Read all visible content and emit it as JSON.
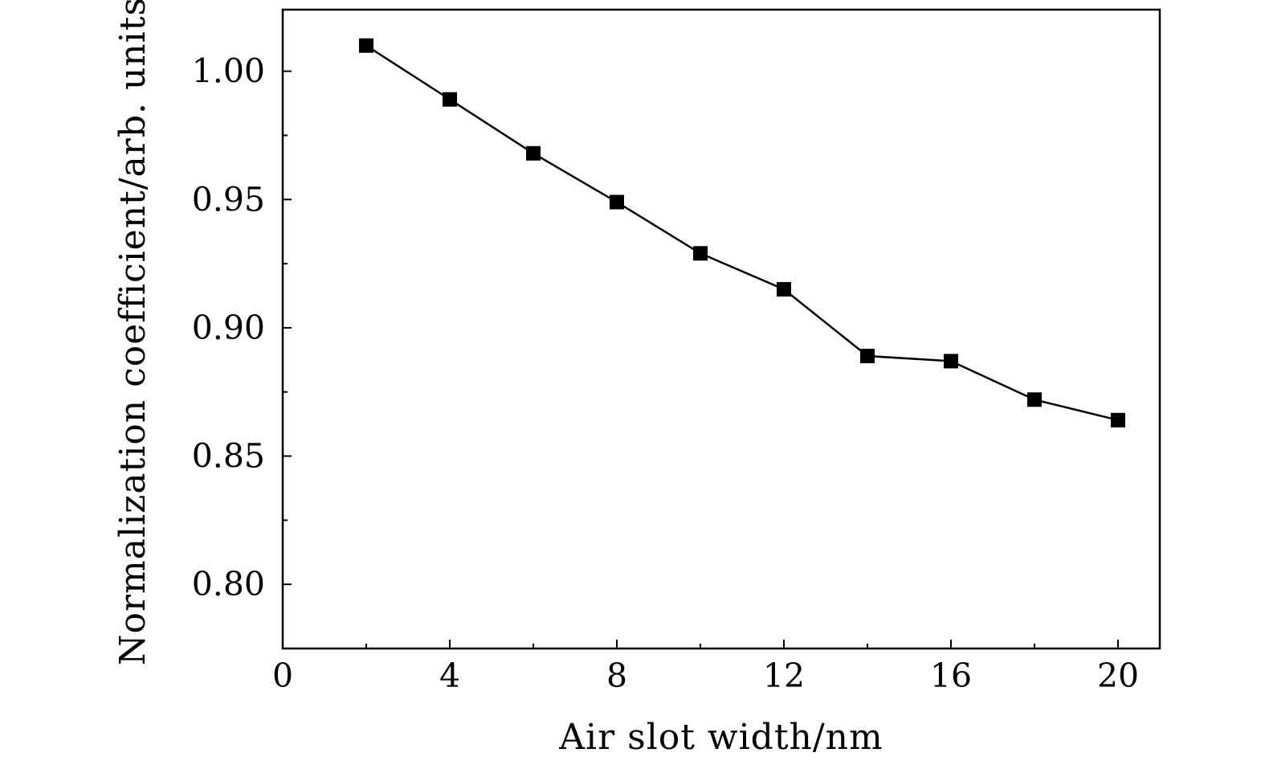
{
  "chart_data": {
    "type": "line",
    "title": "",
    "xlabel": "Air slot width/nm",
    "ylabel": "Normalization coefficient/arb. units",
    "xlim": [
      0,
      21
    ],
    "ylim": [
      0.775,
      1.024
    ],
    "x_ticks": [
      0,
      4,
      8,
      12,
      16,
      20
    ],
    "x_tick_labels": [
      "0",
      "4",
      "8",
      "12",
      "16",
      "20"
    ],
    "x_minor_ticks": [
      2,
      6,
      10,
      14,
      18
    ],
    "y_ticks": [
      0.8,
      0.85,
      0.9,
      0.95,
      1.0
    ],
    "y_tick_labels": [
      "0.80",
      "0.85",
      "0.90",
      "0.95",
      "1.00"
    ],
    "y_minor_ticks": [
      0.825,
      0.875,
      0.925,
      0.975
    ],
    "grid": false,
    "marker": "square",
    "color": "#000000",
    "series": [
      {
        "x": [
          2,
          4,
          6,
          8,
          10,
          12,
          14,
          16,
          18,
          20
        ],
        "values": [
          1.01,
          0.989,
          0.968,
          0.949,
          0.929,
          0.915,
          0.889,
          0.887,
          0.872,
          0.864
        ]
      }
    ]
  }
}
